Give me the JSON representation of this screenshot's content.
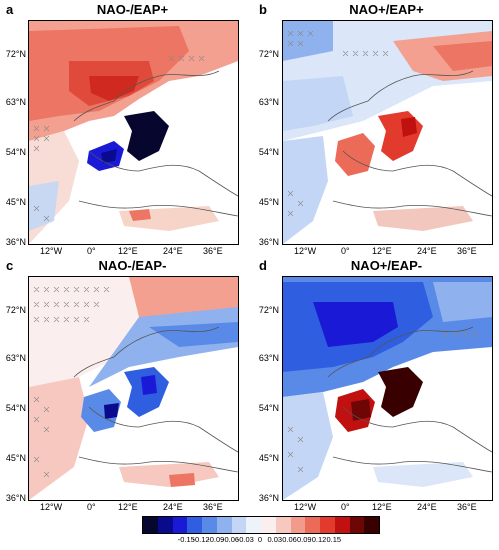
{
  "panels": [
    {
      "id": "a",
      "label": "a",
      "title": "NAO-/EAP+",
      "pattern": "a"
    },
    {
      "id": "b",
      "label": "b",
      "title": "NAO+/EAP+",
      "pattern": "b"
    },
    {
      "id": "c",
      "label": "c",
      "title": "NAO-/EAP-",
      "pattern": "c"
    },
    {
      "id": "d",
      "label": "d",
      "title": "NAO+/EAP-",
      "pattern": "d"
    }
  ],
  "lat_ticks": [
    "72°N",
    "63°N",
    "54°N",
    "45°N",
    "36°N"
  ],
  "lon_ticks": [
    "12°W",
    "0°",
    "12°E",
    "24°E",
    "36°E"
  ],
  "colorbar": {
    "tick_labels": [
      "-0.15",
      "-0.12",
      "-0.09",
      "-0.06",
      "-0.03",
      "0",
      "0.03",
      "0.06",
      "0.09",
      "0.12",
      "0.15"
    ],
    "colors": [
      "#06062f",
      "#0a0a8c",
      "#1a1ad6",
      "#2f5fe0",
      "#5a8ae8",
      "#8fb2ef",
      "#c4d6f6",
      "#eef3fb",
      "#fbeeee",
      "#f7c8c0",
      "#f29a8c",
      "#ec6a58",
      "#e23a2c",
      "#c01010",
      "#6e0606",
      "#380000"
    ]
  }
}
